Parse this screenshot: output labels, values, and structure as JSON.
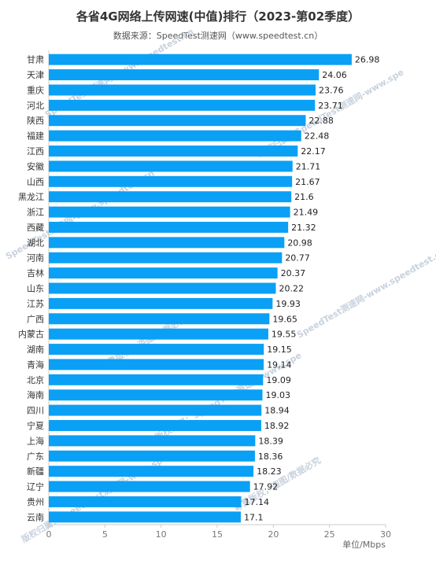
{
  "title": "各省4G网络上传网速(中值)排行（2023-第02季度）",
  "subtitle": "数据来源：SpeedTest测速网（www.speedtest.cn）",
  "colors": {
    "bar": "#0aa0f5",
    "axis": "#cccccc"
  },
  "watermark": [
    "SpeedTest测速网-www.speedtest.cn",
    "版权归属：SpeedTest测速网-www.spe",
    "尊重版权，盗图/数据必究"
  ],
  "chart_data": {
    "type": "bar",
    "orientation": "horizontal",
    "title": "各省4G网络上传网速(中值)排行（2023-第02季度）",
    "categories": [
      "甘肃",
      "天津",
      "重庆",
      "河北",
      "陕西",
      "福建",
      "江西",
      "安徽",
      "山西",
      "黑龙江",
      "浙江",
      "西藏",
      "湖北",
      "河南",
      "吉林",
      "山东",
      "江苏",
      "广西",
      "内蒙古",
      "湖南",
      "青海",
      "北京",
      "海南",
      "四川",
      "宁夏",
      "上海",
      "广东",
      "新疆",
      "辽宁",
      "贵州",
      "云南"
    ],
    "values": [
      26.98,
      24.06,
      23.76,
      23.71,
      22.88,
      22.48,
      22.17,
      21.71,
      21.67,
      21.6,
      21.49,
      21.32,
      20.98,
      20.77,
      20.37,
      20.22,
      19.93,
      19.65,
      19.55,
      19.15,
      19.14,
      19.09,
      19.03,
      18.94,
      18.92,
      18.39,
      18.36,
      18.23,
      17.92,
      17.14,
      17.1
    ],
    "value_labels": [
      "26.98",
      "24.06",
      "23.76",
      "23.71",
      "22.88",
      "22.48",
      "22.17",
      "21.71",
      "21.67",
      "21.6",
      "21.49",
      "21.32",
      "20.98",
      "20.77",
      "20.37",
      "20.22",
      "19.93",
      "19.65",
      "19.55",
      "19.15",
      "19.14",
      "19.09",
      "19.03",
      "18.94",
      "18.92",
      "18.39",
      "18.36",
      "18.23",
      "17.92",
      "17.14",
      "17.1"
    ],
    "xticks": [
      "0",
      "5",
      "10",
      "15",
      "20",
      "25",
      "30"
    ],
    "xlim": [
      0,
      30
    ],
    "xlabel": "单位/Mbps",
    "grid": false
  }
}
